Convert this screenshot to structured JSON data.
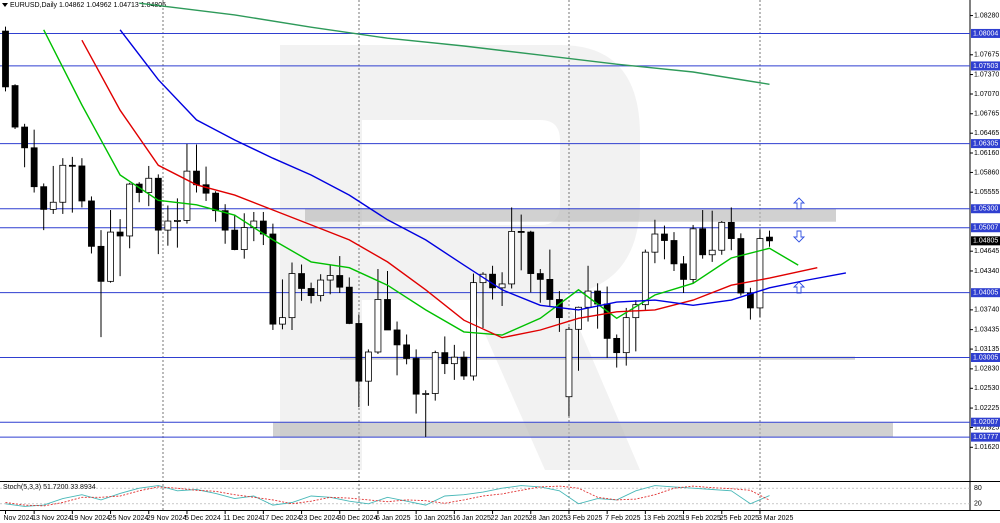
{
  "chart_data": {
    "type": "candlestick",
    "header": "EURUSD,Daily 1.04862 1.04962 1.04713 1.04805",
    "categories": [
      "Nov 2024",
      null,
      null,
      "13 Nov 2024",
      null,
      null,
      null,
      "19 Nov 2024",
      null,
      null,
      null,
      "25 Nov 2024",
      null,
      null,
      null,
      "29 Nov 2024",
      null,
      null,
      null,
      "5 Dec 2024",
      null,
      null,
      null,
      "11 Dec 2024",
      null,
      null,
      null,
      "17 Dec 2024",
      null,
      null,
      null,
      "23 Dec 2024",
      null,
      null,
      null,
      "30 Dec 2024",
      null,
      null,
      null,
      "6 Jan 2025",
      null,
      null,
      null,
      "10 Jan 2025",
      null,
      null,
      null,
      "16 Jan 2025",
      null,
      null,
      null,
      "22 Jan 2025",
      null,
      null,
      null,
      "28 Jan 2025",
      null,
      null,
      null,
      "3 Feb 2025",
      null,
      null,
      null,
      "7 Feb 2025",
      null,
      null,
      null,
      "13 Feb 2025",
      null,
      null,
      null,
      "19 Feb 2025",
      null,
      null,
      null,
      "25 Feb 2025",
      null,
      null,
      null,
      "3 Mar 2025",
      null
    ],
    "open": [
      1.0804,
      1.072,
      1.0656,
      1.0624,
      1.0564,
      1.0529,
      1.054,
      1.0597,
      1.0596,
      1.0542,
      1.0472,
      1.0418,
      1.0494,
      1.0488,
      1.0568,
      1.0555,
      1.0577,
      1.0497,
      1.0511,
      1.0512,
      1.0588,
      1.0567,
      1.0554,
      1.0527,
      1.0497,
      1.0467,
      1.0501,
      1.0511,
      1.0491,
      1.0352,
      1.0362,
      1.043,
      1.0407,
      1.0396,
      1.042,
      1.0427,
      1.0409,
      1.0353,
      1.0264,
      1.0309,
      1.039,
      1.0343,
      1.032,
      1.0299,
      1.0244,
      1.0245,
      1.0308,
      1.0291,
      1.0301,
      1.0272,
      1.0416,
      1.0429,
      1.0408,
      1.0414,
      1.0495,
      1.0494,
      1.043,
      1.0421,
      1.039,
      1.024,
      1.0344,
      1.0378,
      1.0403,
      1.0383,
      1.033,
      1.0308,
      1.0362,
      1.0382,
      1.0463,
      1.0491,
      1.0481,
      1.0445,
      1.0421,
      1.0499,
      1.0459,
      1.0466,
      1.0509,
      1.0484,
      1.04,
      1.0377,
      1.04862
    ],
    "high": [
      1.0811,
      1.0722,
      1.0661,
      1.0652,
      1.0569,
      1.0596,
      1.0608,
      1.061,
      1.0608,
      1.0549,
      1.0497,
      1.0528,
      1.0514,
      1.057,
      1.0571,
      1.0596,
      1.0583,
      1.0535,
      1.0546,
      1.063,
      1.0629,
      1.0595,
      1.0557,
      1.0537,
      1.0521,
      1.0523,
      1.0525,
      1.0525,
      1.0507,
      1.0421,
      1.0447,
      1.0444,
      1.0416,
      1.0429,
      1.0444,
      1.0457,
      1.0424,
      1.0367,
      1.0313,
      1.0437,
      1.0434,
      1.0356,
      1.0336,
      1.0313,
      1.025,
      1.0311,
      1.0333,
      1.032,
      1.031,
      1.043,
      1.0432,
      1.0442,
      1.0432,
      1.0532,
      1.0521,
      1.0496,
      1.0437,
      1.0467,
      1.0403,
      1.0348,
      1.0379,
      1.0442,
      1.0415,
      1.041,
      1.0336,
      1.0377,
      1.0389,
      1.0467,
      1.0513,
      1.0504,
      1.0494,
      1.0457,
      1.0505,
      1.0528,
      1.0527,
      1.0511,
      1.0532,
      1.0492,
      1.0408,
      1.0498,
      1.04962
    ],
    "low": [
      1.0711,
      1.0653,
      1.0594,
      1.0555,
      1.0497,
      1.0522,
      1.0522,
      1.0524,
      1.0532,
      1.0461,
      1.0332,
      1.0416,
      1.0426,
      1.0469,
      1.054,
      1.0534,
      1.046,
      1.0473,
      1.047,
      1.0507,
      1.0555,
      1.0542,
      1.051,
      1.0476,
      1.0466,
      1.0453,
      1.048,
      1.0474,
      1.0343,
      1.0344,
      1.0343,
      1.0388,
      1.0384,
      1.0387,
      1.0398,
      1.04,
      1.0352,
      1.0224,
      1.0226,
      1.0306,
      1.0343,
      1.0273,
      1.029,
      1.0214,
      1.0178,
      1.0234,
      1.0275,
      1.0266,
      1.0266,
      1.0265,
      1.0346,
      1.039,
      1.038,
      1.0407,
      1.0435,
      1.0401,
      1.0385,
      1.038,
      1.034,
      1.021,
      1.028,
      1.0356,
      1.0345,
      1.03,
      1.0285,
      1.0288,
      1.031,
      1.0374,
      1.0446,
      1.0452,
      1.0434,
      1.04,
      1.0414,
      1.0453,
      1.0448,
      1.0459,
      1.0466,
      1.0396,
      1.0359,
      1.0363,
      1.04713
    ],
    "close": [
      1.0718,
      1.0656,
      1.0624,
      1.0564,
      1.0529,
      1.054,
      1.0597,
      1.0596,
      1.0542,
      1.0472,
      1.0418,
      1.0494,
      1.0488,
      1.0568,
      1.0555,
      1.0577,
      1.0497,
      1.0511,
      1.0512,
      1.0588,
      1.0567,
      1.0554,
      1.0527,
      1.0497,
      1.0467,
      1.0501,
      1.0511,
      1.0491,
      1.0352,
      1.0362,
      1.043,
      1.0407,
      1.0396,
      1.042,
      1.0427,
      1.0409,
      1.0353,
      1.0264,
      1.0309,
      1.039,
      1.0343,
      1.032,
      1.0299,
      1.0244,
      1.0245,
      1.0308,
      1.0291,
      1.0301,
      1.0272,
      1.0416,
      1.0429,
      1.0408,
      1.0414,
      1.0495,
      1.0494,
      1.043,
      1.0421,
      1.039,
      1.0362,
      1.0344,
      1.0378,
      1.0403,
      1.0383,
      1.033,
      1.0308,
      1.0362,
      1.0382,
      1.0463,
      1.0491,
      1.0481,
      1.0445,
      1.0421,
      1.0499,
      1.0459,
      1.0466,
      1.0509,
      1.0484,
      1.04,
      1.0377,
      1.0484,
      1.04805
    ],
    "up_color": "#ffffff",
    "down_color": "#000000",
    "ylim": [
      1.011,
      1.0852
    ],
    "yticks": [
      {
        "value": 1.0828,
        "label": "1.08280"
      },
      1.07675,
      {
        "value": 1.0737,
        "label": "1.07370"
      },
      {
        "value": 1.0707,
        "label": "1.07070"
      },
      1.06765,
      1.06465,
      {
        "value": 1.0616,
        "label": "1.06160"
      },
      {
        "value": 1.0586,
        "label": "1.05860"
      },
      1.05555,
      1.04645,
      {
        "value": 1.0434,
        "label": "1.04340"
      },
      {
        "value": 1.0374,
        "label": "1.03740"
      },
      1.03435,
      1.03135,
      {
        "value": 1.0283,
        "label": "1.02830"
      },
      {
        "value": 1.0253,
        "label": "1.02530"
      },
      1.02225,
      1.01925,
      {
        "value": 1.0162,
        "label": "1.01620"
      }
    ],
    "levels": [
      1.08004,
      1.07503,
      1.06305,
      {
        "value": 1.053,
        "label": "1.05300"
      },
      1.05007,
      1.04005,
      1.03005,
      1.02007,
      1.01777
    ],
    "level_color": "#2f3fd0",
    "zones": [
      [
        1.051,
        1.053
      ],
      [
        1.0297,
        1.0302
      ],
      [
        1.0178,
        1.02
      ]
    ],
    "series": [
      {
        "color": "#00c000",
        "x": [
          4,
          8,
          12,
          16,
          20,
          24,
          28,
          32,
          36,
          40,
          44,
          48,
          52,
          56,
          60,
          64,
          68,
          72,
          76,
          80,
          83
        ],
        "values": [
          1.0806,
          1.069,
          1.0582,
          1.0543,
          1.0536,
          1.052,
          1.0482,
          1.0448,
          1.0439,
          1.0412,
          1.0374,
          1.034,
          1.0335,
          1.0361,
          1.0405,
          1.0361,
          1.0397,
          1.0415,
          1.0454,
          1.0469,
          1.0443
        ]
      },
      {
        "color": "#e00000",
        "x": [
          8,
          12,
          16,
          20,
          24,
          28,
          32,
          36,
          40,
          44,
          48,
          52,
          56,
          60,
          64,
          68,
          72,
          76,
          80,
          85
        ],
        "values": [
          1.079,
          1.0682,
          1.0597,
          1.0567,
          1.0551,
          1.0528,
          1.0505,
          1.0482,
          1.0448,
          1.0405,
          1.0358,
          1.0331,
          1.0343,
          1.0361,
          1.0371,
          1.0374,
          1.0389,
          1.0412,
          1.0423,
          1.0439
        ]
      },
      {
        "color": "#0000e0",
        "x": [
          12,
          16,
          20,
          24,
          28,
          32,
          36,
          40,
          44,
          48,
          52,
          56,
          60,
          64,
          68,
          72,
          76,
          80,
          84,
          88
        ],
        "values": [
          1.0806,
          1.0729,
          1.0667,
          1.0636,
          1.0608,
          1.0582,
          1.0551,
          1.0513,
          1.0482,
          1.0443,
          1.0405,
          1.0381,
          1.0374,
          1.0386,
          1.0389,
          1.0381,
          1.0389,
          1.0408,
          1.042,
          1.0431
        ]
      },
      {
        "color": "#2e9a5a",
        "x": [
          14,
          24,
          32,
          40,
          48,
          56,
          64,
          72,
          80
        ],
        "values": [
          1.0847,
          1.0829,
          1.081,
          1.0793,
          1.0781,
          1.0767,
          1.0753,
          1.0741,
          1.0722
        ]
      }
    ],
    "stochastic": {
      "title": "Stoch(5,3,3) 51.7200 33.8934",
      "ylim": [
        0,
        100
      ],
      "yticks": [
        20,
        80
      ],
      "series": [
        {
          "color": "#48b8b8",
          "x": [
            0,
            2,
            4,
            6,
            8,
            10,
            12,
            14,
            16,
            18,
            20,
            22,
            24,
            26,
            28,
            30,
            32,
            34,
            36,
            38,
            40,
            42,
            44,
            46,
            48,
            50,
            52,
            54,
            56,
            58,
            60,
            62,
            64,
            66,
            68,
            70,
            72,
            74,
            76,
            78,
            80
          ],
          "values": [
            20,
            10,
            15,
            40,
            55,
            35,
            60,
            80,
            90,
            70,
            75,
            60,
            40,
            50,
            15,
            25,
            50,
            45,
            30,
            20,
            45,
            30,
            15,
            50,
            55,
            65,
            80,
            90,
            85,
            70,
            20,
            40,
            35,
            70,
            90,
            85,
            80,
            75,
            70,
            20,
            51.72
          ]
        },
        {
          "color": "#e03030",
          "dashed": true,
          "x": [
            0,
            2,
            4,
            6,
            8,
            10,
            12,
            14,
            16,
            18,
            20,
            22,
            24,
            26,
            28,
            30,
            32,
            34,
            36,
            38,
            40,
            42,
            44,
            46,
            48,
            50,
            52,
            54,
            56,
            58,
            60,
            62,
            64,
            66,
            68,
            70,
            72,
            74,
            76,
            78,
            80
          ],
          "values": [
            25,
            15,
            12,
            25,
            45,
            45,
            50,
            70,
            85,
            80,
            72,
            68,
            55,
            45,
            35,
            20,
            30,
            45,
            42,
            35,
            28,
            35,
            32,
            22,
            35,
            50,
            58,
            72,
            85,
            88,
            80,
            45,
            35,
            38,
            55,
            80,
            88,
            82,
            78,
            72,
            33.8934
          ]
        }
      ]
    }
  }
}
